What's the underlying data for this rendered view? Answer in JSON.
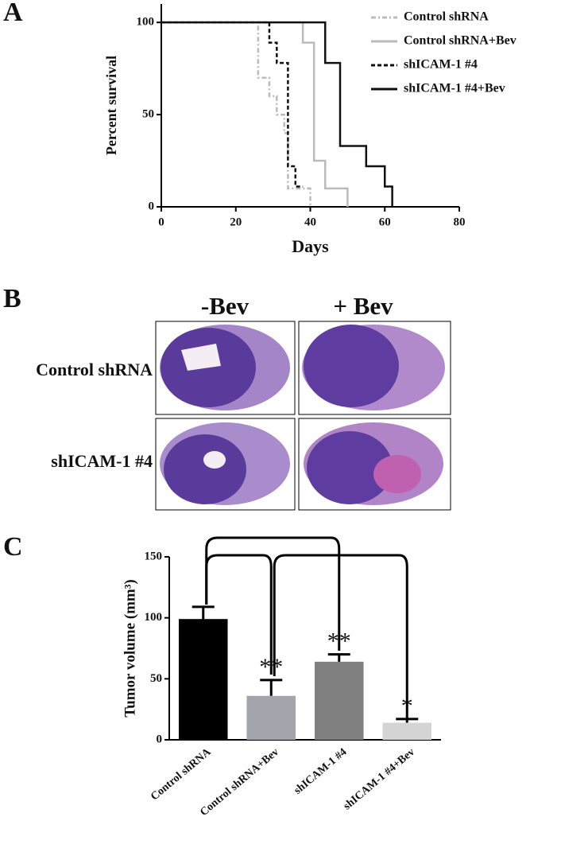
{
  "panel_labels": [
    "A",
    "B",
    "C"
  ],
  "histology": {
    "columns": [
      "-Bev",
      "+ Bev"
    ],
    "rows": [
      "Control shRNA",
      "shICAM-1 #4"
    ]
  },
  "chart_data": [
    {
      "type": "line",
      "xlabel": "Days",
      "ylabel": "Percent survival",
      "xlim": [
        0,
        80
      ],
      "xticks": [
        0,
        20,
        40,
        60,
        80
      ],
      "ylim": [
        0,
        110
      ],
      "yticks": [
        0,
        50,
        100
      ],
      "series": [
        {
          "name": "Control shRNA",
          "color": "#bbbbbb",
          "dash": "6,3,2,3",
          "x": [
            0,
            26,
            26,
            29,
            29,
            31,
            31,
            33,
            33,
            34,
            34,
            40,
            40
          ],
          "values": [
            100,
            100,
            70,
            70,
            60,
            60,
            50,
            50,
            40,
            40,
            10,
            10,
            0
          ]
        },
        {
          "name": "Control shRNA+Bev",
          "color": "#bbbbbb",
          "dash": "",
          "x": [
            0,
            38,
            38,
            41,
            41,
            44,
            44,
            50,
            50
          ],
          "values": [
            100,
            100,
            89,
            89,
            25,
            25,
            10,
            10,
            0
          ]
        },
        {
          "name": "shICAM-1 #4",
          "color": "#111111",
          "dash": "5,3",
          "x": [
            0,
            29,
            29,
            31,
            31,
            34,
            34,
            36,
            36,
            38
          ],
          "values": [
            100,
            100,
            89,
            89,
            78,
            78,
            22,
            22,
            11,
            11
          ]
        },
        {
          "name": "shICAM-1 #4+Bev",
          "color": "#111111",
          "dash": "",
          "x": [
            0,
            44,
            44,
            48,
            48,
            55,
            55,
            60,
            60,
            62,
            62
          ],
          "values": [
            100,
            100,
            78,
            78,
            33,
            33,
            22,
            22,
            11,
            11,
            0
          ]
        }
      ]
    },
    {
      "type": "bar",
      "ylabel": "Tumor volume (mm³)",
      "categories": [
        "Control shRNA",
        "Control shRNA+Bev",
        "shICAM-1 #4",
        "shICAM-1 #4+Bev"
      ],
      "values": [
        99,
        36,
        64,
        14
      ],
      "errors": [
        10,
        13,
        6,
        3
      ],
      "colors": [
        "#000000",
        "#a4a4ac",
        "#808080",
        "#d4d4d4"
      ],
      "ylim": [
        0,
        150
      ],
      "yticks": [
        0,
        50,
        100,
        150
      ],
      "annotations": [
        {
          "index": 1,
          "text": "**"
        },
        {
          "index": 2,
          "text": "**"
        },
        {
          "index": 3,
          "text": "*"
        }
      ]
    }
  ]
}
